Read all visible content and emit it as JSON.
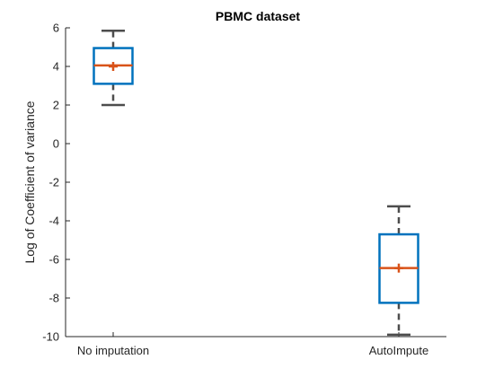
{
  "chart_data": {
    "type": "box",
    "title": "PBMC dataset",
    "xlabel": "",
    "ylabel": "Log of Coefficient of variance",
    "ylim": [
      -10,
      6
    ],
    "yticks": [
      -10,
      -8,
      -6,
      -4,
      -2,
      0,
      2,
      4,
      6
    ],
    "grid": false,
    "categories": [
      "No imputation",
      "AutoImpute"
    ],
    "boxes": [
      {
        "name": "No imputation",
        "whisker_low": 2.0,
        "q1": 3.1,
        "median": 4.05,
        "mean": 4.0,
        "q3": 4.95,
        "whisker_high": 5.85
      },
      {
        "name": "AutoImpute",
        "whisker_low": -9.9,
        "q1": -8.25,
        "median": -6.45,
        "mean": -6.45,
        "q3": -4.7,
        "whisker_high": -3.25
      }
    ],
    "colors": {
      "box": "#0072bd",
      "median": "#d95319",
      "mean_marker": "#d95319",
      "whisker": "#4d4d4d",
      "axis": "#262626"
    }
  }
}
